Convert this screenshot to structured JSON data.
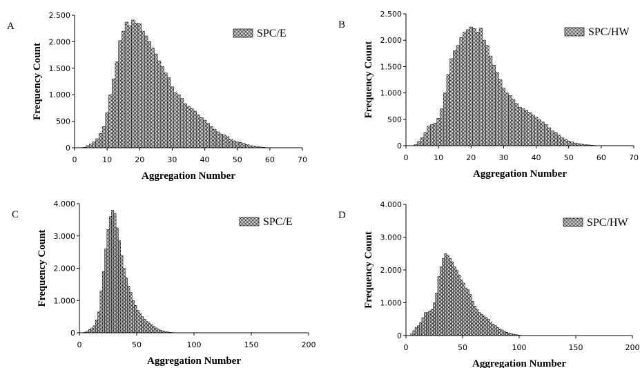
{
  "chart_data": [
    {
      "type": "histogram",
      "panel_label": "A",
      "x_label": "Aggregation Number",
      "y_label": "Frequency Count",
      "legend": "upper right",
      "bins": [
        2.5,
        3.5,
        4.5,
        5.5,
        6.5,
        7.5,
        8.5,
        9.5,
        10.5,
        11.5,
        12.5,
        13.5,
        14.5,
        15.5,
        16.5,
        17.5,
        18.5,
        19.5,
        20.5,
        21.5,
        22.5,
        23.5,
        24.5,
        25.5,
        26.5,
        27.5,
        28.5,
        29.5,
        30.5,
        31.5,
        32.5,
        33.5,
        34.5,
        35.5,
        36.5,
        37.5,
        38.5,
        39.5,
        40.5,
        41.5,
        42.5,
        43.5,
        44.5,
        45.5,
        46.5,
        47.5,
        48.5,
        49.5,
        50.5,
        51.5,
        52.5,
        53.5,
        54.5,
        55.5,
        56.5,
        57.5,
        58.5,
        59.5,
        60.5
      ],
      "series": [
        {
          "name": "SPC/E",
          "color": "#3a3a3a",
          "values": [
            10,
            40,
            70,
            110,
            170,
            270,
            400,
            660,
            1000,
            1300,
            1620,
            2020,
            2200,
            2370,
            2300,
            2410,
            2350,
            2340,
            2200,
            2110,
            2000,
            1880,
            1770,
            1640,
            1530,
            1410,
            1320,
            1150,
            1040,
            1000,
            930,
            830,
            780,
            740,
            690,
            620,
            570,
            520,
            460,
            400,
            350,
            300,
            260,
            240,
            210,
            160,
            130,
            110,
            100,
            80,
            60,
            40,
            30,
            20,
            15,
            10,
            5,
            2
          ]
        }
      ],
      "xlim": [
        0,
        70
      ],
      "xticks": [
        0,
        10,
        20,
        30,
        40,
        50,
        60,
        70
      ],
      "ylim": [
        0,
        2500
      ],
      "yticks": [
        0,
        500,
        {
          "value": 1000,
          "label": "1.000"
        },
        {
          "value": 1500,
          "label": "1.500"
        },
        {
          "value": 2000,
          "label": "2.000"
        },
        {
          "value": 2500,
          "label": "2.500"
        }
      ]
    },
    {
      "type": "histogram",
      "panel_label": "B",
      "x_label": "Aggregation Number",
      "y_label": "Frequency Count",
      "legend": "upper right",
      "bins": [
        2.5,
        3.5,
        4.5,
        5.5,
        6.5,
        7.5,
        8.5,
        9.5,
        10.5,
        11.5,
        12.5,
        13.5,
        14.5,
        15.5,
        16.5,
        17.5,
        18.5,
        19.5,
        20.5,
        21.5,
        22.5,
        23.5,
        24.5,
        25.5,
        26.5,
        27.5,
        28.5,
        29.5,
        30.5,
        31.5,
        32.5,
        33.5,
        34.5,
        35.5,
        36.5,
        37.5,
        38.5,
        39.5,
        40.5,
        41.5,
        42.5,
        43.5,
        44.5,
        45.5,
        46.5,
        47.5,
        48.5,
        49.5,
        50.5,
        51.5,
        52.5,
        53.5,
        54.5,
        55.5,
        56.5,
        57.5,
        58.5,
        59.5,
        60.5
      ],
      "series": [
        {
          "name": "SPC/HW",
          "color": "#3a3a3a",
          "values": [
            20,
            80,
            150,
            250,
            370,
            400,
            430,
            520,
            700,
            1000,
            1350,
            1650,
            1800,
            1900,
            2050,
            2150,
            2200,
            2250,
            2220,
            2150,
            2230,
            2000,
            1900,
            1700,
            1530,
            1390,
            1250,
            1090,
            1000,
            950,
            880,
            800,
            730,
            700,
            670,
            630,
            580,
            540,
            490,
            450,
            400,
            340,
            280,
            250,
            200,
            150,
            120,
            90,
            70,
            50,
            40,
            30,
            20,
            15,
            10,
            5,
            3,
            1
          ]
        }
      ],
      "xlim": [
        0,
        70
      ],
      "xticks": [
        0,
        10,
        20,
        30,
        40,
        50,
        60,
        70
      ],
      "ylim": [
        0,
        2500
      ],
      "yticks": [
        0,
        500,
        {
          "value": 1000,
          "label": "1.000"
        },
        {
          "value": 1500,
          "label": "1.500"
        },
        {
          "value": 2000,
          "label": "2.000"
        },
        {
          "value": 2500,
          "label": "2.500"
        }
      ]
    },
    {
      "type": "histogram",
      "panel_label": "C",
      "x_label": "Aggregation Number",
      "y_label": "Frequency Count",
      "legend": "upper right",
      "bins": [
        4,
        6,
        8,
        10,
        12,
        14,
        16,
        18,
        20,
        22,
        24,
        26,
        28,
        30,
        32,
        34,
        36,
        38,
        40,
        42,
        44,
        46,
        48,
        50,
        52,
        54,
        56,
        58,
        60,
        62,
        64,
        66,
        68,
        70,
        72,
        74,
        76,
        78,
        80,
        82,
        84,
        86
      ],
      "series": [
        {
          "name": "SPC/E",
          "color": "#3a3a3a",
          "values": [
            20,
            50,
            100,
            150,
            220,
            400,
            650,
            1300,
            1900,
            2600,
            3200,
            3600,
            3800,
            3700,
            3250,
            2850,
            2400,
            2000,
            1700,
            1450,
            1250,
            1000,
            850,
            700,
            600,
            500,
            420,
            350,
            300,
            250,
            200,
            150,
            110,
            80,
            60,
            40,
            25,
            15,
            10,
            5,
            2
          ]
        }
      ],
      "xlim": [
        0,
        200
      ],
      "xticks": [
        0,
        50,
        100,
        150,
        200
      ],
      "ylim": [
        0,
        4000
      ],
      "yticks": [
        0,
        {
          "value": 1000,
          "label": "1.000"
        },
        {
          "value": 2000,
          "label": "2.000"
        },
        {
          "value": 3000,
          "label": "3.000"
        },
        {
          "value": 4000,
          "label": "4.000"
        }
      ]
    },
    {
      "type": "histogram",
      "panel_label": "D",
      "x_label": "Aggregation Number",
      "y_label": "Frequency Count",
      "legend": "upper right",
      "bins": [
        4,
        6,
        8,
        10,
        12,
        14,
        16,
        18,
        20,
        22,
        24,
        26,
        28,
        30,
        32,
        34,
        36,
        38,
        40,
        42,
        44,
        46,
        48,
        50,
        52,
        54,
        56,
        58,
        60,
        62,
        64,
        66,
        68,
        70,
        72,
        74,
        76,
        78,
        80,
        82,
        84,
        86,
        88,
        90,
        92,
        94,
        96,
        98,
        100,
        102,
        104,
        106
      ],
      "series": [
        {
          "name": "SPC/HW",
          "color": "#3a3a3a",
          "values": [
            50,
            150,
            250,
            300,
            400,
            550,
            700,
            700,
            750,
            800,
            1000,
            1300,
            1800,
            2100,
            2350,
            2500,
            2450,
            2350,
            2250,
            2100,
            2000,
            1850,
            1700,
            1600,
            1450,
            1400,
            1250,
            1050,
            900,
            800,
            700,
            650,
            600,
            550,
            500,
            400,
            350,
            300,
            250,
            200,
            170,
            130,
            100,
            80,
            60,
            40,
            30,
            20,
            10,
            5,
            2
          ]
        }
      ],
      "xlim": [
        0,
        200
      ],
      "xticks": [
        0,
        50,
        100,
        150,
        200
      ],
      "ylim": [
        0,
        4000
      ],
      "yticks": [
        0,
        {
          "value": 1000,
          "label": "1.000"
        },
        {
          "value": 2000,
          "label": "2.000"
        },
        {
          "value": 3000,
          "label": "3.000"
        },
        {
          "value": 4000,
          "label": "4.000"
        }
      ]
    }
  ]
}
